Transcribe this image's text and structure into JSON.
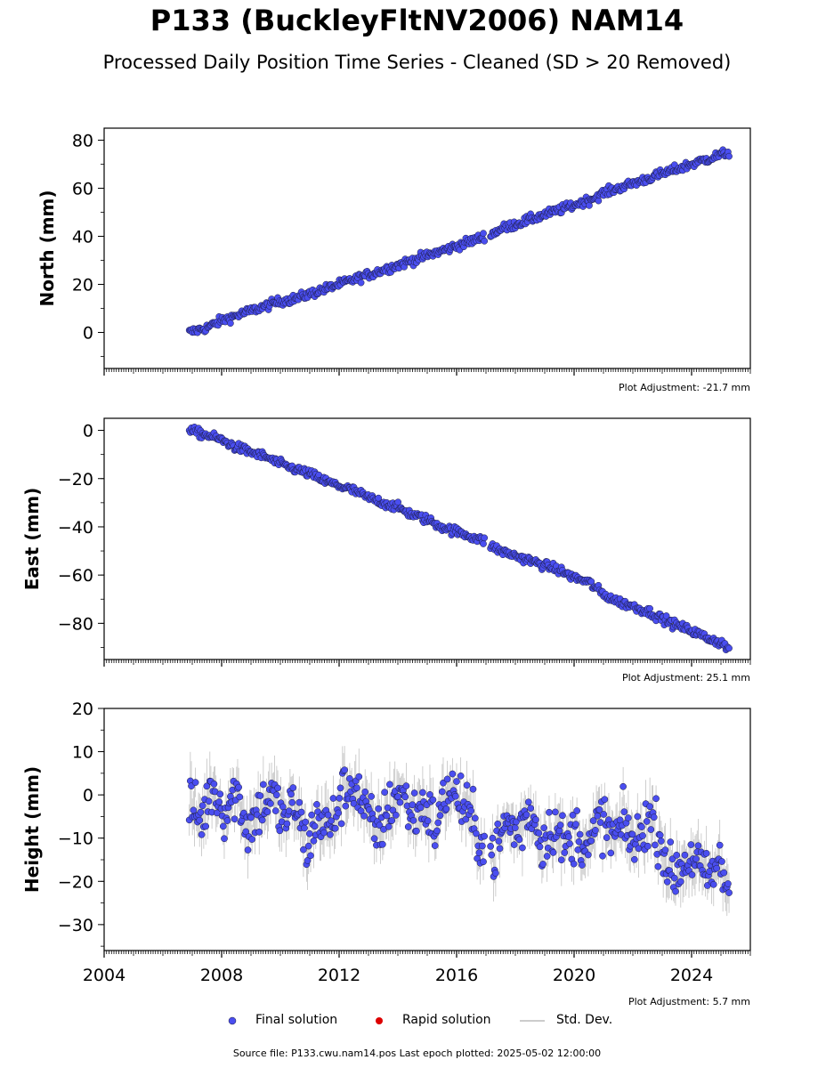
{
  "title": "P133 (BuckleyFltNV2006) NAM14",
  "subtitle": "Processed Daily Position Time Series - Cleaned (SD > 20 Removed)",
  "legend": {
    "final": "Final solution",
    "rapid": "Rapid solution",
    "std": "Std. Dev."
  },
  "source": "Source file: P133.cwu.nam14.pos  Last epoch plotted: 2025-05-02 12:00:00",
  "colors": {
    "final": "#4a4ef0",
    "rapid": "#dd0000",
    "std": "#888888"
  },
  "chart_data": [
    {
      "type": "scatter",
      "ylabel": "North (mm)",
      "adjustment": "Plot Adjustment: -21.7 mm",
      "xlim": [
        2004.0,
        2026.0
      ],
      "ylim": [
        -15,
        85
      ],
      "yticks": [
        0,
        20,
        40,
        60,
        80
      ],
      "series": [
        {
          "name": "Final solution",
          "x": [
            2006.9,
            2007.5,
            2008.0,
            2008.5,
            2009.0,
            2009.5,
            2010.0,
            2010.5,
            2011.0,
            2011.5,
            2012.0,
            2012.5,
            2013.0,
            2013.5,
            2014.0,
            2014.5,
            2015.0,
            2015.5,
            2016.0,
            2016.5,
            2016.95,
            2017.2,
            2017.5,
            2018.0,
            2018.5,
            2019.0,
            2019.5,
            2020.0,
            2020.5,
            2021.0,
            2021.5,
            2022.0,
            2022.5,
            2023.0,
            2023.5,
            2024.0,
            2024.5,
            2025.0,
            2025.3
          ],
          "y": [
            0,
            2,
            5,
            7,
            9,
            11,
            13,
            14,
            16,
            18,
            20,
            22,
            24,
            26,
            28,
            30,
            32,
            34,
            36,
            38,
            40,
            41,
            43,
            45,
            47,
            49,
            51,
            53,
            55,
            58,
            60,
            62,
            64,
            66,
            68,
            70,
            72,
            74,
            75
          ]
        }
      ]
    },
    {
      "type": "scatter",
      "ylabel": "East (mm)",
      "adjustment": "Plot Adjustment: 25.1 mm",
      "xlim": [
        2004.0,
        2026.0
      ],
      "ylim": [
        -95,
        5
      ],
      "yticks": [
        0,
        -20,
        -40,
        -60,
        -80
      ],
      "series": [
        {
          "name": "Final solution",
          "x": [
            2006.9,
            2007.5,
            2008.0,
            2008.5,
            2009.0,
            2009.5,
            2010.0,
            2010.5,
            2011.0,
            2011.5,
            2012.0,
            2012.5,
            2013.0,
            2013.5,
            2014.0,
            2014.5,
            2015.0,
            2015.5,
            2016.0,
            2016.5,
            2016.95,
            2017.2,
            2017.5,
            2018.0,
            2018.5,
            2019.0,
            2019.5,
            2020.0,
            2020.5,
            2021.0,
            2021.5,
            2022.0,
            2022.5,
            2023.0,
            2023.5,
            2024.0,
            2024.5,
            2025.0,
            2025.3
          ],
          "y": [
            0,
            -2,
            -4,
            -7,
            -9,
            -11,
            -14,
            -16,
            -18,
            -21,
            -23,
            -25,
            -28,
            -30,
            -32,
            -35,
            -37,
            -40,
            -42,
            -44,
            -46,
            -48,
            -50,
            -52,
            -54,
            -56,
            -58,
            -61,
            -63,
            -68,
            -71,
            -73,
            -75,
            -78,
            -81,
            -83,
            -86,
            -88,
            -91
          ]
        }
      ]
    },
    {
      "type": "scatter",
      "ylabel": "Height (mm)",
      "adjustment": "Plot Adjustment: 5.7 mm",
      "xlim": [
        2004.0,
        2026.0
      ],
      "ylim": [
        -36,
        20
      ],
      "yticks": [
        20,
        10,
        0,
        -10,
        -20,
        -30
      ],
      "xticks": [
        2004,
        2008,
        2012,
        2016,
        2020,
        2024
      ],
      "series": [
        {
          "name": "Final solution",
          "x": [
            2006.9,
            2007.3,
            2007.7,
            2008.1,
            2008.5,
            2008.9,
            2009.3,
            2009.7,
            2010.1,
            2010.5,
            2010.9,
            2011.3,
            2011.7,
            2012.1,
            2012.5,
            2012.9,
            2013.3,
            2013.7,
            2014.1,
            2014.5,
            2014.9,
            2015.3,
            2015.7,
            2016.1,
            2016.5,
            2016.95,
            2017.3,
            2017.7,
            2018.1,
            2018.5,
            2018.9,
            2019.3,
            2019.7,
            2020.1,
            2020.5,
            2020.9,
            2021.3,
            2021.7,
            2022.1,
            2022.5,
            2022.9,
            2023.3,
            2023.7,
            2024.1,
            2024.5,
            2024.9,
            2025.3
          ],
          "y": [
            -2,
            -6,
            2,
            -4,
            1,
            -8,
            -3,
            0,
            -6,
            -2,
            -12,
            -5,
            -8,
            0,
            3,
            -4,
            -9,
            -3,
            1,
            -5,
            -2,
            -8,
            2,
            -1,
            -6,
            -12,
            -14,
            -6,
            -9,
            -3,
            -11,
            -7,
            -12,
            -8,
            -13,
            -5,
            -10,
            -7,
            -12,
            -5,
            -9,
            -19,
            -16,
            -14,
            -20,
            -16,
            -22
          ]
        }
      ]
    }
  ]
}
